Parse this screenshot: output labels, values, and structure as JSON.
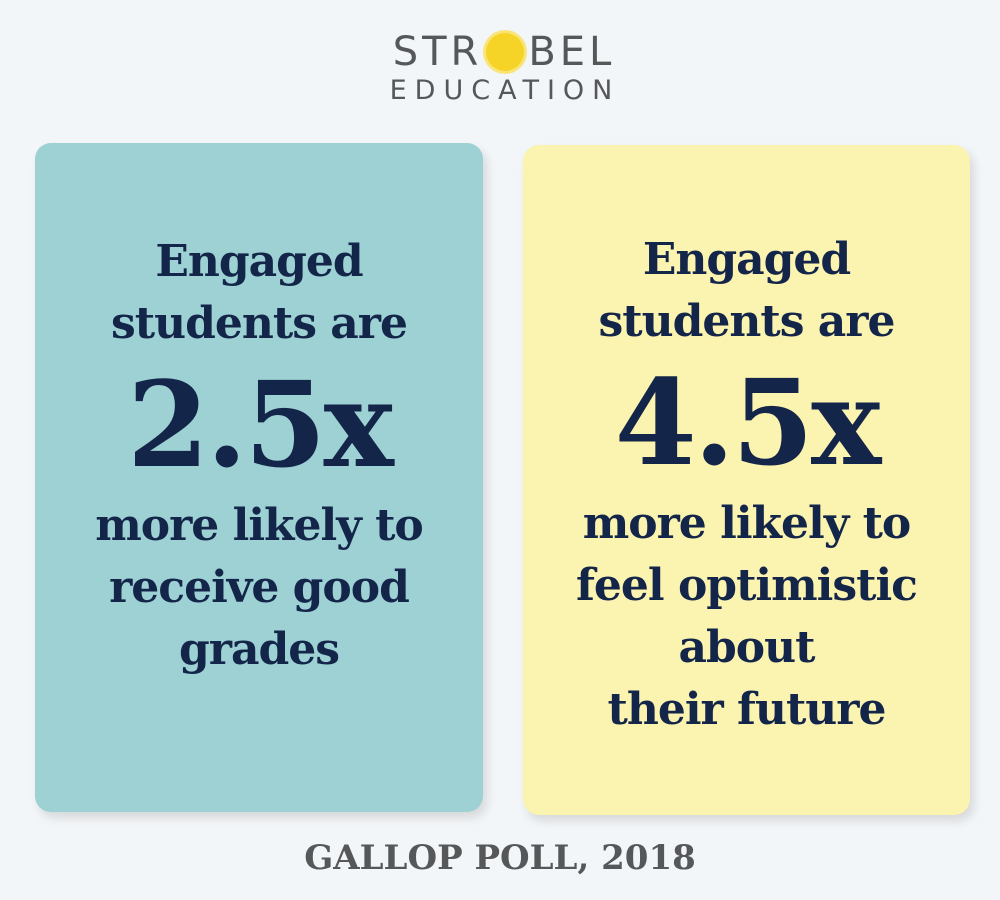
{
  "logo": {
    "line1_pre": "STR",
    "line1_post": "BEL",
    "line2": "EDUCATION",
    "sun_color": "#f5d327"
  },
  "cards": [
    {
      "intro_1": "Engaged",
      "intro_2": "students are",
      "stat": "2.5x",
      "lines": [
        "more likely to",
        "receive good",
        "grades"
      ],
      "color": "#9dd1d4"
    },
    {
      "intro_1": "Engaged",
      "intro_2": "students are",
      "stat": "4.5x",
      "lines": [
        "more likely to",
        "feel optimistic",
        "about",
        "their future"
      ],
      "color": "#fbf3b0"
    }
  ],
  "source": "GALLOP POLL, 2018",
  "text_color": "#14254a"
}
